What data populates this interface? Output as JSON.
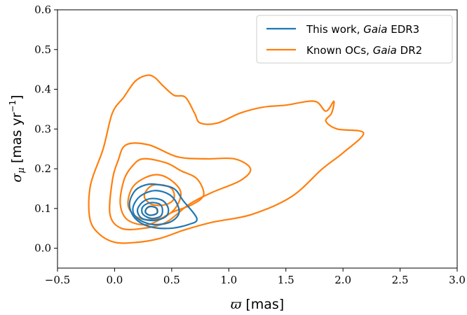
{
  "chart_data": {
    "type": "contour",
    "xlabel_symbol": "ϖ",
    "xlabel_unit": "[mas]",
    "ylabel_symbol": "σ",
    "ylabel_sub": "μ",
    "ylabel_unit": "[mas yr",
    "ylabel_exp": "−1",
    "ylabel_close": "]",
    "xlim": [
      -0.5,
      3.0
    ],
    "ylim": [
      -0.05,
      0.6
    ],
    "xticks": [
      -0.5,
      0.0,
      0.5,
      1.0,
      1.5,
      2.0,
      2.5,
      3.0
    ],
    "xtick_labels": [
      "−0.5",
      "0.0",
      "0.5",
      "1.0",
      "1.5",
      "2.0",
      "2.5",
      "3.0"
    ],
    "yticks": [
      0.0,
      0.1,
      0.2,
      0.3,
      0.4,
      0.5,
      0.6
    ],
    "ytick_labels": [
      "0.0",
      "0.1",
      "0.2",
      "0.3",
      "0.4",
      "0.5",
      "0.6"
    ],
    "grid": false,
    "legend_position": "top-right",
    "series": [
      {
        "name_plain": "This work, ",
        "name_italic": "Gaia",
        "name_suffix": " EDR3",
        "color": "#1f77b4",
        "contours": [
          [
            [
              0.38,
              0.16
            ],
            [
              0.52,
              0.15
            ],
            [
              0.6,
              0.12
            ],
            [
              0.72,
              0.075
            ],
            [
              0.65,
              0.06
            ],
            [
              0.48,
              0.05
            ],
            [
              0.3,
              0.055
            ],
            [
              0.18,
              0.075
            ],
            [
              0.13,
              0.11
            ],
            [
              0.18,
              0.145
            ],
            [
              0.28,
              0.16
            ]
          ],
          [
            [
              0.35,
              0.145
            ],
            [
              0.48,
              0.135
            ],
            [
              0.55,
              0.11
            ],
            [
              0.56,
              0.085
            ],
            [
              0.48,
              0.065
            ],
            [
              0.33,
              0.06
            ],
            [
              0.2,
              0.075
            ],
            [
              0.16,
              0.1
            ],
            [
              0.22,
              0.13
            ]
          ],
          [
            [
              0.32,
              0.125
            ],
            [
              0.42,
              0.12
            ],
            [
              0.47,
              0.1
            ],
            [
              0.45,
              0.08
            ],
            [
              0.35,
              0.07
            ],
            [
              0.24,
              0.075
            ],
            [
              0.2,
              0.095
            ],
            [
              0.24,
              0.115
            ]
          ],
          [
            [
              0.33,
              0.115
            ],
            [
              0.4,
              0.11
            ],
            [
              0.42,
              0.095
            ],
            [
              0.4,
              0.08
            ],
            [
              0.32,
              0.075
            ],
            [
              0.25,
              0.085
            ],
            [
              0.24,
              0.1
            ],
            [
              0.27,
              0.11
            ]
          ],
          [
            [
              0.32,
              0.105
            ],
            [
              0.37,
              0.1
            ],
            [
              0.37,
              0.088
            ],
            [
              0.31,
              0.083
            ],
            [
              0.27,
              0.09
            ],
            [
              0.28,
              0.1
            ]
          ]
        ]
      },
      {
        "name_plain": "Known OCs, ",
        "name_italic": "Gaia",
        "name_suffix": " DR2",
        "color": "#ff7f0e",
        "contours": [
          [
            [
              0.35,
              0.43
            ],
            [
              0.42,
              0.41
            ],
            [
              0.52,
              0.385
            ],
            [
              0.62,
              0.38
            ],
            [
              0.7,
              0.34
            ],
            [
              0.75,
              0.315
            ],
            [
              0.9,
              0.315
            ],
            [
              1.1,
              0.34
            ],
            [
              1.3,
              0.355
            ],
            [
              1.5,
              0.36
            ],
            [
              1.75,
              0.37
            ],
            [
              1.85,
              0.345
            ],
            [
              1.92,
              0.37
            ],
            [
              1.9,
              0.34
            ],
            [
              1.85,
              0.32
            ],
            [
              1.95,
              0.3
            ],
            [
              2.18,
              0.29
            ],
            [
              2.0,
              0.24
            ],
            [
              1.82,
              0.2
            ],
            [
              1.55,
              0.13
            ],
            [
              1.2,
              0.085
            ],
            [
              0.85,
              0.065
            ],
            [
              0.6,
              0.045
            ],
            [
              0.4,
              0.025
            ],
            [
              0.2,
              0.015
            ],
            [
              0.0,
              0.015
            ],
            [
              -0.15,
              0.04
            ],
            [
              -0.22,
              0.08
            ],
            [
              -0.21,
              0.16
            ],
            [
              -0.1,
              0.25
            ],
            [
              -0.02,
              0.34
            ],
            [
              0.08,
              0.38
            ],
            [
              0.18,
              0.42
            ],
            [
              0.28,
              0.435
            ]
          ],
          [
            [
              0.1,
              0.26
            ],
            [
              0.3,
              0.26
            ],
            [
              0.55,
              0.23
            ],
            [
              0.8,
              0.225
            ],
            [
              1.05,
              0.225
            ],
            [
              1.19,
              0.2
            ],
            [
              1.1,
              0.17
            ],
            [
              0.85,
              0.14
            ],
            [
              0.65,
              0.11
            ],
            [
              0.45,
              0.065
            ],
            [
              0.25,
              0.05
            ],
            [
              0.06,
              0.05
            ],
            [
              -0.04,
              0.085
            ],
            [
              -0.02,
              0.17
            ],
            [
              0.03,
              0.22
            ]
          ],
          [
            [
              0.25,
              0.225
            ],
            [
              0.45,
              0.215
            ],
            [
              0.58,
              0.195
            ],
            [
              0.72,
              0.175
            ],
            [
              0.78,
              0.135
            ],
            [
              0.68,
              0.11
            ],
            [
              0.5,
              0.09
            ],
            [
              0.3,
              0.06
            ],
            [
              0.12,
              0.07
            ],
            [
              0.05,
              0.11
            ],
            [
              0.08,
              0.17
            ],
            [
              0.15,
              0.205
            ]
          ],
          [
            [
              0.38,
              0.185
            ],
            [
              0.5,
              0.17
            ],
            [
              0.58,
              0.14
            ],
            [
              0.53,
              0.1
            ],
            [
              0.4,
              0.075
            ],
            [
              0.22,
              0.075
            ],
            [
              0.12,
              0.105
            ],
            [
              0.15,
              0.15
            ],
            [
              0.25,
              0.175
            ]
          ],
          [
            [
              0.4,
              0.16
            ],
            [
              0.5,
              0.15
            ],
            [
              0.52,
              0.125
            ],
            [
              0.45,
              0.11
            ],
            [
              0.33,
              0.11
            ],
            [
              0.26,
              0.13
            ],
            [
              0.31,
              0.155
            ]
          ],
          [
            [
              0.3,
              0.105
            ],
            [
              0.36,
              0.102
            ],
            [
              0.37,
              0.088
            ],
            [
              0.31,
              0.083
            ],
            [
              0.27,
              0.092
            ]
          ]
        ]
      }
    ]
  }
}
